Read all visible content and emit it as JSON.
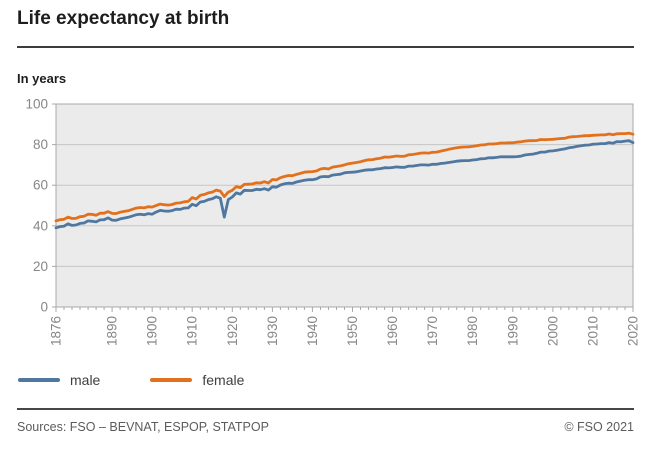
{
  "header": {
    "title": "Life expectancy at birth",
    "unit_label": "In years"
  },
  "footer": {
    "sources": "Sources: FSO – BEVNAT, ESPOP, STATPOP",
    "copyright": "© FSO 2021"
  },
  "colors": {
    "male_line": "#50779f",
    "female_line": "#e2711d",
    "plot_background": "#ebebeb",
    "gridline": "#c6c6c6",
    "axis": "#a8a8a8",
    "tick_label": "#878787",
    "title_text": "#1d1d1b",
    "footer_text": "#5c5c5c"
  },
  "chart_data": {
    "type": "line",
    "title": "Life expectancy at birth",
    "ylabel": "In years",
    "xlabel": "",
    "ylim": [
      0,
      100
    ],
    "ytick_interval": 20,
    "ytick_labels": [
      0,
      20,
      40,
      60,
      80,
      100
    ],
    "xlim": [
      1876,
      2020
    ],
    "xtick_labels": [
      1876,
      1890,
      1900,
      1910,
      1920,
      1930,
      1940,
      1950,
      1960,
      1970,
      1980,
      1990,
      2000,
      2010,
      2020
    ],
    "grid": true,
    "legend_position": "bottom-left",
    "plot_bg": "#ebebeb",
    "grid_color": "#c6c6c6",
    "axis_color": "#a8a8a8",
    "tick_label_color": "#878787",
    "x": [
      1876,
      1877,
      1878,
      1879,
      1880,
      1881,
      1882,
      1883,
      1884,
      1885,
      1886,
      1887,
      1888,
      1889,
      1890,
      1891,
      1892,
      1893,
      1894,
      1895,
      1896,
      1897,
      1898,
      1899,
      1900,
      1901,
      1902,
      1903,
      1904,
      1905,
      1906,
      1907,
      1908,
      1909,
      1910,
      1911,
      1912,
      1913,
      1914,
      1915,
      1916,
      1917,
      1918,
      1919,
      1920,
      1921,
      1922,
      1923,
      1924,
      1925,
      1926,
      1927,
      1928,
      1929,
      1930,
      1931,
      1932,
      1933,
      1934,
      1935,
      1936,
      1937,
      1938,
      1939,
      1940,
      1941,
      1942,
      1943,
      1944,
      1945,
      1946,
      1947,
      1948,
      1949,
      1950,
      1951,
      1952,
      1953,
      1954,
      1955,
      1956,
      1957,
      1958,
      1959,
      1960,
      1961,
      1962,
      1963,
      1964,
      1965,
      1966,
      1967,
      1968,
      1969,
      1970,
      1971,
      1972,
      1973,
      1974,
      1975,
      1976,
      1977,
      1978,
      1979,
      1980,
      1981,
      1982,
      1983,
      1984,
      1985,
      1986,
      1987,
      1988,
      1989,
      1990,
      1991,
      1992,
      1993,
      1994,
      1995,
      1996,
      1997,
      1998,
      1999,
      2000,
      2001,
      2002,
      2003,
      2004,
      2005,
      2006,
      2007,
      2008,
      2009,
      2010,
      2011,
      2012,
      2013,
      2014,
      2015,
      2016,
      2017,
      2018,
      2019,
      2020
    ],
    "series": [
      {
        "name": "male",
        "color": "#50779f",
        "values": [
          39.0,
          39.6,
          39.8,
          41.0,
          40.2,
          40.4,
          41.2,
          41.4,
          42.4,
          42.2,
          41.9,
          42.9,
          43.0,
          43.9,
          42.8,
          42.7,
          43.4,
          43.8,
          44.2,
          44.8,
          45.4,
          45.7,
          45.4,
          46.0,
          45.7,
          46.8,
          47.6,
          47.3,
          47.2,
          47.5,
          48.2,
          48.1,
          48.7,
          48.8,
          50.6,
          49.9,
          51.7,
          52.0,
          52.9,
          53.3,
          54.3,
          53.6,
          44.3,
          52.9,
          54.2,
          56.2,
          55.6,
          57.5,
          57.4,
          57.4,
          58.0,
          57.8,
          58.3,
          57.6,
          59.2,
          59.0,
          60.1,
          60.7,
          61.0,
          60.9,
          61.6,
          62.0,
          62.4,
          62.7,
          62.7,
          63.1,
          64.1,
          64.3,
          64.2,
          65.0,
          65.2,
          65.4,
          66.1,
          66.3,
          66.4,
          66.6,
          67.0,
          67.4,
          67.6,
          67.6,
          68.0,
          68.2,
          68.6,
          68.5,
          68.7,
          69.0,
          68.8,
          68.8,
          69.4,
          69.4,
          69.7,
          70.0,
          70.0,
          69.9,
          70.3,
          70.3,
          70.7,
          70.9,
          71.2,
          71.5,
          71.8,
          72.0,
          72.1,
          72.1,
          72.4,
          72.6,
          73.0,
          73.1,
          73.5,
          73.5,
          73.7,
          74.0,
          74.0,
          74.0,
          74.0,
          74.1,
          74.3,
          74.9,
          75.1,
          75.3,
          75.7,
          76.3,
          76.3,
          76.8,
          76.9,
          77.2,
          77.6,
          77.9,
          78.4,
          78.7,
          79.1,
          79.4,
          79.7,
          79.8,
          80.2,
          80.3,
          80.5,
          80.5,
          81.0,
          80.7,
          81.5,
          81.4,
          81.7,
          81.9,
          81.0
        ]
      },
      {
        "name": "female",
        "color": "#e2711d",
        "values": [
          42.4,
          43.0,
          43.2,
          44.3,
          43.6,
          43.7,
          44.5,
          44.7,
          45.7,
          45.6,
          45.2,
          46.2,
          46.2,
          47.0,
          46.1,
          46.0,
          46.7,
          47.1,
          47.4,
          48.1,
          48.7,
          49.0,
          48.8,
          49.4,
          49.2,
          50.0,
          50.7,
          50.4,
          50.2,
          50.5,
          51.2,
          51.3,
          51.8,
          52.0,
          53.9,
          53.2,
          55.0,
          55.4,
          56.2,
          56.6,
          57.6,
          57.1,
          54.4,
          56.6,
          57.5,
          59.3,
          58.8,
          60.4,
          60.5,
          60.6,
          61.2,
          61.1,
          61.7,
          61.1,
          62.8,
          62.6,
          63.7,
          64.3,
          64.8,
          64.7,
          65.3,
          65.8,
          66.4,
          66.6,
          66.7,
          67.0,
          68.0,
          68.3,
          68.0,
          68.9,
          69.2,
          69.5,
          70.0,
          70.6,
          70.9,
          71.2,
          71.6,
          72.1,
          72.5,
          72.6,
          73.0,
          73.3,
          73.9,
          73.8,
          74.1,
          74.4,
          74.2,
          74.3,
          75.0,
          75.1,
          75.4,
          75.8,
          75.9,
          75.8,
          76.2,
          76.3,
          76.8,
          77.2,
          77.7,
          78.1,
          78.4,
          78.7,
          78.8,
          78.9,
          79.1,
          79.4,
          79.8,
          79.9,
          80.3,
          80.3,
          80.5,
          80.8,
          80.8,
          80.9,
          80.9,
          81.2,
          81.4,
          81.7,
          81.9,
          81.9,
          82.0,
          82.5,
          82.4,
          82.5,
          82.6,
          82.8,
          83.0,
          83.1,
          83.7,
          83.9,
          84.0,
          84.2,
          84.4,
          84.4,
          84.6,
          84.7,
          84.8,
          84.8,
          85.2,
          84.9,
          85.3,
          85.4,
          85.4,
          85.6,
          85.1
        ]
      }
    ]
  }
}
